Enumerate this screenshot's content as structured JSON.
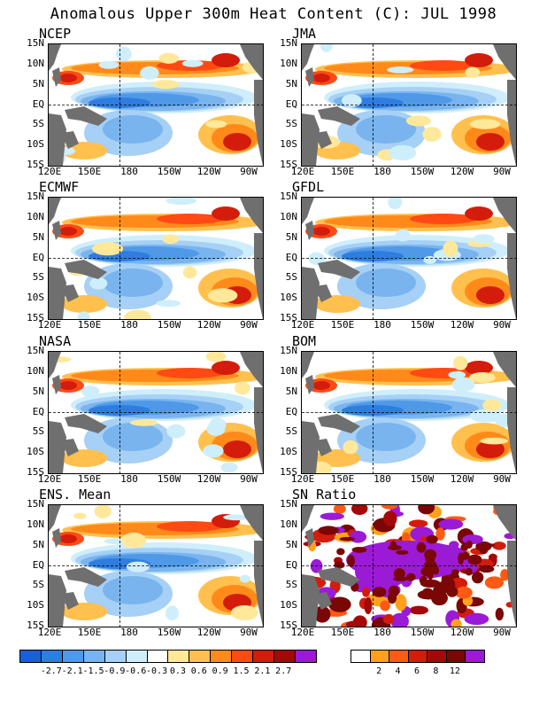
{
  "title": "Anomalous Upper 300m Heat Content (C): JUL 1998",
  "lat_labels": [
    "15N",
    "10N",
    "5N",
    "EQ",
    "5S",
    "10S",
    "15S"
  ],
  "lon_labels": [
    "120E",
    "150E",
    "180",
    "150W",
    "120W",
    "90W"
  ],
  "panels": [
    {
      "name": "NCEP",
      "type": "anomaly"
    },
    {
      "name": "JMA",
      "type": "anomaly"
    },
    {
      "name": "ECMWF",
      "type": "anomaly"
    },
    {
      "name": "GFDL",
      "type": "anomaly"
    },
    {
      "name": "NASA",
      "type": "anomaly"
    },
    {
      "name": "BOM",
      "type": "anomaly"
    },
    {
      "name": "ENS. Mean",
      "type": "anomaly"
    },
    {
      "name": "SN Ratio",
      "type": "snr"
    }
  ],
  "anomaly_colorbar": {
    "colors": [
      "#1b5fd6",
      "#2f7de0",
      "#4f99e8",
      "#79b4ef",
      "#a6d0f5",
      "#cfeefc",
      "#ffffff",
      "#ffe89a",
      "#ffc04d",
      "#ff8a1a",
      "#ff4a14",
      "#d41c0c",
      "#a50808",
      "#9b1ad6"
    ],
    "labels": [
      "-2.7",
      "-2.1",
      "-1.5",
      "-0.9",
      "-0.6",
      "-0.3",
      "0.3",
      "0.6",
      "0.9",
      "1.5",
      "2.1",
      "2.7"
    ]
  },
  "snr_colorbar": {
    "colors": [
      "#ffffff",
      "#ffa21a",
      "#ff5a14",
      "#d41c0c",
      "#a50808",
      "#7a0606",
      "#9b1ad6"
    ],
    "labels": [
      "2",
      "4",
      "6",
      "8",
      "12"
    ]
  },
  "land_color": "#6f6f6f"
}
